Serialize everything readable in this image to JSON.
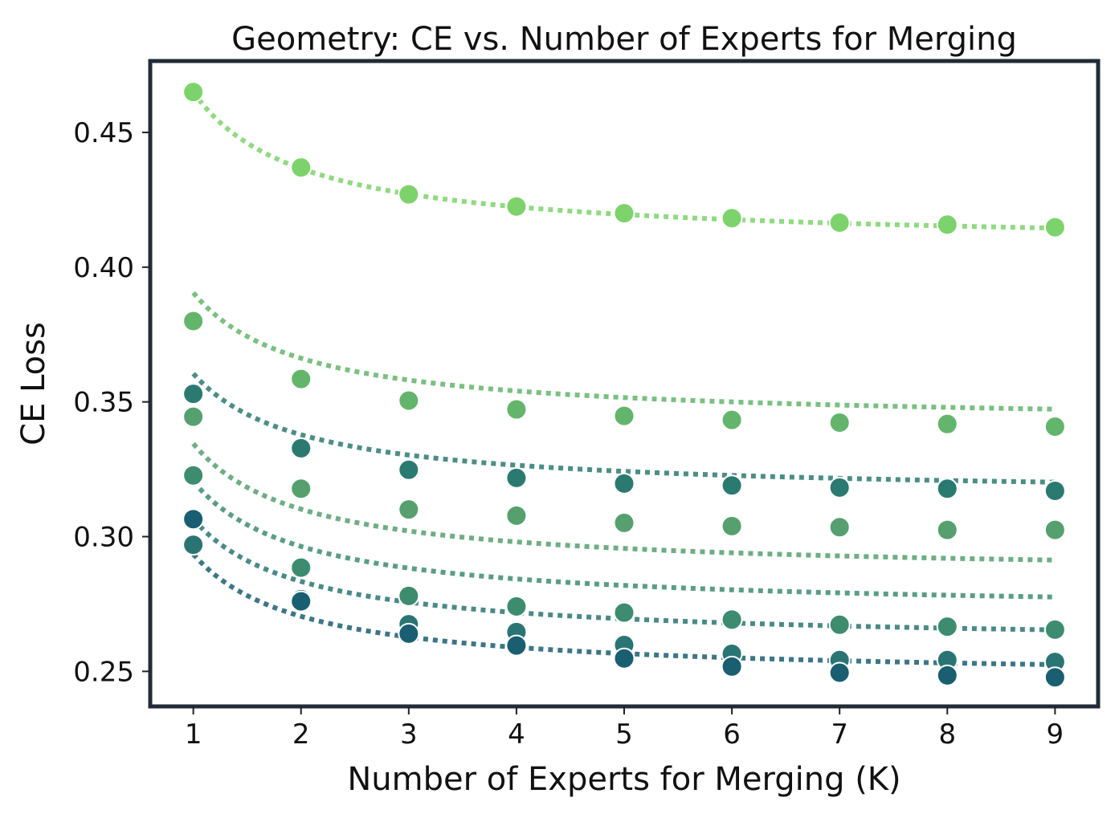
{
  "chart_data": {
    "type": "scatter",
    "title": "Geometry: CE vs. Number of Experts for Merging",
    "xlabel": "Number of Experts for Merging (K)",
    "ylabel": "CE Loss",
    "x": [
      1,
      2,
      3,
      4,
      5,
      6,
      7,
      8,
      9
    ],
    "x_ticks": [
      "1",
      "2",
      "3",
      "4",
      "5",
      "6",
      "7",
      "8",
      "9"
    ],
    "y_ticks": [
      0.25,
      0.3,
      0.35,
      0.4,
      0.45
    ],
    "y_tick_labels": [
      "0.25",
      "0.30",
      "0.35",
      "0.40",
      "0.45"
    ],
    "xlim": [
      0.6,
      9.4
    ],
    "ylim": [
      0.237,
      0.4765
    ],
    "grid": false,
    "fit_lines": "dotted",
    "series": [
      {
        "color": "#7dd36b",
        "values": [
          0.465,
          0.437,
          0.427,
          0.4225,
          0.42,
          0.4182,
          0.4165,
          0.4158,
          0.4148
        ],
        "fit": [
          0.465,
          0.4363,
          0.4268,
          0.4221,
          0.4193,
          0.4175,
          0.4162,
          0.4152,
          0.4145
        ]
      },
      {
        "color": "#63b56b",
        "values": [
          0.38,
          0.3585,
          0.3505,
          0.3472,
          0.3448,
          0.3433,
          0.3423,
          0.3418,
          0.3408
        ],
        "fit": [
          0.3905,
          0.3662,
          0.3581,
          0.3541,
          0.3516,
          0.35,
          0.3489,
          0.348,
          0.3473
        ]
      },
      {
        "color": "#2b7a72",
        "values": [
          0.353,
          0.3328,
          0.3248,
          0.3218,
          0.3197,
          0.319,
          0.3182,
          0.3178,
          0.317
        ],
        "fit": [
          0.3605,
          0.3378,
          0.3303,
          0.3265,
          0.3242,
          0.3227,
          0.3217,
          0.3208,
          0.3202
        ]
      },
      {
        "color": "#55a06e",
        "values": [
          0.3445,
          0.3178,
          0.3101,
          0.3078,
          0.3051,
          0.3039,
          0.3035,
          0.3025,
          0.3025
        ],
        "fit": [
          0.3345,
          0.3102,
          0.3021,
          0.2981,
          0.2956,
          0.294,
          0.2929,
          0.292,
          0.2913
        ]
      },
      {
        "color": "#3d8c70",
        "values": [
          0.3227,
          0.2885,
          0.278,
          0.2741,
          0.2718,
          0.2692,
          0.2673,
          0.2666,
          0.2655
        ],
        "fit": [
          0.3205,
          0.2963,
          0.2883,
          0.2843,
          0.2819,
          0.2802,
          0.2791,
          0.2782,
          0.2776
        ]
      },
      {
        "color": "#2a7574",
        "values": [
          0.297,
          0.2768,
          0.2675,
          0.2646,
          0.2598,
          0.2565,
          0.2542,
          0.2542,
          0.2535
        ],
        "fit": [
          0.3065,
          0.2833,
          0.2756,
          0.2718,
          0.2695,
          0.2679,
          0.2668,
          0.266,
          0.2654
        ]
      },
      {
        "color": "#1a5e72",
        "values": [
          0.3065,
          0.276,
          0.264,
          0.2596,
          0.2548,
          0.2518,
          0.2495,
          0.2485,
          0.2478
        ],
        "fit": [
          0.2935,
          0.2704,
          0.2627,
          0.2589,
          0.2566,
          0.255,
          0.254,
          0.2531,
          0.2525
        ]
      }
    ]
  }
}
